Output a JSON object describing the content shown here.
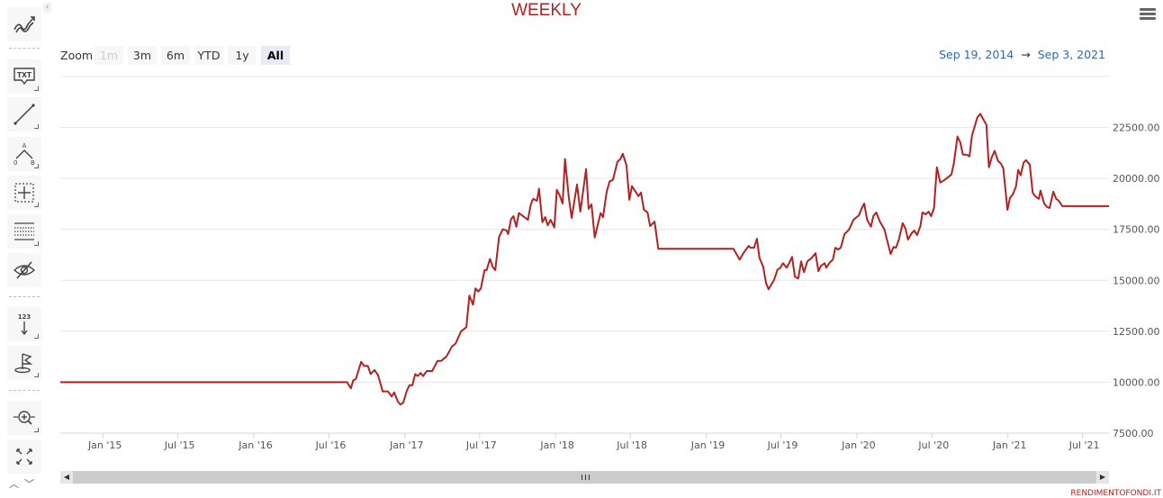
{
  "title": "WEEKLY",
  "toolbar": {
    "items": [
      {
        "name": "indicators",
        "icon": "trend-lines-icon"
      },
      {
        "name": "text-annotation",
        "icon": "txt-callout-icon",
        "label": "TXT"
      },
      {
        "name": "line",
        "icon": "line-segment-icon"
      },
      {
        "name": "measure-angle",
        "icon": "angle-ab-icon",
        "labels": [
          "A",
          "0",
          "B"
        ]
      },
      {
        "name": "crosshair",
        "icon": "crosshair-grid-icon"
      },
      {
        "name": "fibonacci",
        "icon": "horizontal-lines-icon"
      },
      {
        "name": "toggle-annotations",
        "icon": "eye-off-icon"
      },
      {
        "name": "vertical-counter",
        "icon": "counter-arrow-icon",
        "label": "123"
      },
      {
        "name": "flag",
        "icon": "flag-icon"
      },
      {
        "name": "zoom-change",
        "icon": "zoom-pan-icon"
      },
      {
        "name": "fullscreen",
        "icon": "fullscreen-icon"
      }
    ],
    "collapse_glyph": "‹",
    "scroll_glyphs": "︿﹀"
  },
  "range_selector": {
    "label": "Zoom",
    "buttons": [
      {
        "label": "1m",
        "state": "disabled"
      },
      {
        "label": "3m",
        "state": "normal"
      },
      {
        "label": "6m",
        "state": "normal"
      },
      {
        "label": "YTD",
        "state": "normal"
      },
      {
        "label": "1y",
        "state": "normal"
      },
      {
        "label": "All",
        "state": "active"
      }
    ],
    "from": "Sep 19, 2014",
    "arrow": "→",
    "to": "Sep 3, 2021"
  },
  "credits": "RENDIMENTOFONDI.IT",
  "colors": {
    "line": "#b22222",
    "title": "#b22222",
    "range_text": "#3366aa"
  },
  "chart_data": {
    "type": "line",
    "title": "WEEKLY",
    "xlim": [
      "2014-09-19",
      "2021-09-03"
    ],
    "ylim": [
      7500,
      25000
    ],
    "grid": true,
    "legend": "none",
    "x_ticks": [
      "Jan '15",
      "Jul '15",
      "Jan '16",
      "Jul '16",
      "Jan '17",
      "Jul '17",
      "Jan '18",
      "Jul '18",
      "Jan '19",
      "Jul '19",
      "Jan '20",
      "Jul '20",
      "Jan '21",
      "Jul '21"
    ],
    "x_tick_dates": [
      "2015-01-01",
      "2015-07-01",
      "2016-01-01",
      "2016-07-01",
      "2017-01-01",
      "2017-07-01",
      "2018-01-01",
      "2018-07-01",
      "2019-01-01",
      "2019-07-01",
      "2020-01-01",
      "2020-07-01",
      "2021-01-01",
      "2021-07-01"
    ],
    "y_ticks": [
      7500,
      10000,
      12500,
      15000,
      17500,
      20000,
      22500
    ],
    "y_tick_labels": [
      "7500.00",
      "10000.00",
      "12500.00",
      "15000.00",
      "17500.00",
      "20000.00",
      "22500.00"
    ],
    "series": [
      {
        "points": [
          [
            "2014-09-19",
            10000
          ],
          [
            "2016-08-14",
            10000
          ],
          [
            "2016-08-23",
            9700
          ],
          [
            "2016-08-29",
            10100
          ],
          [
            "2016-09-04",
            10150
          ],
          [
            "2016-09-17",
            11000
          ],
          [
            "2016-09-24",
            10800
          ],
          [
            "2016-10-03",
            10800
          ],
          [
            "2016-10-10",
            10400
          ],
          [
            "2016-10-19",
            10600
          ],
          [
            "2016-10-28",
            10350
          ],
          [
            "2016-11-08",
            9550
          ],
          [
            "2016-11-21",
            9550
          ],
          [
            "2016-11-30",
            9300
          ],
          [
            "2016-12-06",
            9500
          ],
          [
            "2016-12-15",
            9050
          ],
          [
            "2016-12-21",
            8900
          ],
          [
            "2016-12-28",
            9000
          ],
          [
            "2017-01-06",
            9600
          ],
          [
            "2017-01-12",
            9850
          ],
          [
            "2017-01-19",
            9850
          ],
          [
            "2017-01-26",
            10400
          ],
          [
            "2017-02-01",
            10300
          ],
          [
            "2017-02-08",
            10450
          ],
          [
            "2017-02-14",
            10300
          ],
          [
            "2017-02-23",
            10550
          ],
          [
            "2017-03-08",
            10550
          ],
          [
            "2017-03-21",
            11050
          ],
          [
            "2017-03-30",
            11050
          ],
          [
            "2017-04-12",
            11270
          ],
          [
            "2017-04-25",
            11750
          ],
          [
            "2017-05-04",
            11900
          ],
          [
            "2017-05-17",
            12500
          ],
          [
            "2017-05-30",
            12700
          ],
          [
            "2017-06-06",
            14250
          ],
          [
            "2017-06-15",
            13800
          ],
          [
            "2017-06-21",
            14600
          ],
          [
            "2017-06-28",
            14450
          ],
          [
            "2017-07-04",
            14600
          ],
          [
            "2017-07-13",
            15500
          ],
          [
            "2017-07-18",
            15500
          ],
          [
            "2017-07-26",
            16050
          ],
          [
            "2017-08-02",
            15650
          ],
          [
            "2017-08-08",
            15500
          ],
          [
            "2017-08-17",
            17130
          ],
          [
            "2017-08-26",
            17500
          ],
          [
            "2017-09-04",
            17450
          ],
          [
            "2017-09-08",
            17270
          ],
          [
            "2017-09-15",
            18000
          ],
          [
            "2017-09-21",
            18150
          ],
          [
            "2017-09-28",
            17630
          ],
          [
            "2017-10-04",
            18300
          ],
          [
            "2017-10-26",
            17970
          ],
          [
            "2017-11-02",
            18730
          ],
          [
            "2017-11-08",
            19000
          ],
          [
            "2017-11-17",
            18900
          ],
          [
            "2017-11-22",
            19500
          ],
          [
            "2017-11-30",
            17850
          ],
          [
            "2017-12-07",
            18100
          ],
          [
            "2017-12-13",
            17700
          ],
          [
            "2017-12-20",
            17970
          ],
          [
            "2017-12-29",
            17600
          ],
          [
            "2018-01-04",
            19440
          ],
          [
            "2018-01-11",
            19170
          ],
          [
            "2018-01-18",
            18770
          ],
          [
            "2018-01-24",
            20950
          ],
          [
            "2018-02-02",
            19100
          ],
          [
            "2018-02-09",
            18060
          ],
          [
            "2018-02-22",
            19700
          ],
          [
            "2018-03-02",
            18370
          ],
          [
            "2018-03-16",
            20460
          ],
          [
            "2018-03-22",
            18510
          ],
          [
            "2018-03-29",
            18730
          ],
          [
            "2018-04-06",
            17100
          ],
          [
            "2018-04-20",
            18300
          ],
          [
            "2018-04-26",
            18100
          ],
          [
            "2018-05-05",
            19350
          ],
          [
            "2018-05-12",
            19850
          ],
          [
            "2018-05-20",
            19930
          ],
          [
            "2018-05-31",
            20820
          ],
          [
            "2018-06-07",
            20950
          ],
          [
            "2018-06-13",
            21210
          ],
          [
            "2018-06-22",
            20640
          ],
          [
            "2018-06-29",
            18950
          ],
          [
            "2018-07-05",
            19620
          ],
          [
            "2018-07-21",
            19130
          ],
          [
            "2018-07-27",
            19310
          ],
          [
            "2018-08-03",
            18470
          ],
          [
            "2018-08-12",
            18330
          ],
          [
            "2018-08-18",
            17660
          ],
          [
            "2018-08-29",
            17880
          ],
          [
            "2018-09-07",
            16550
          ],
          [
            "2019-03-08",
            16550
          ],
          [
            "2019-03-23",
            16020
          ],
          [
            "2019-04-01",
            16330
          ],
          [
            "2019-04-14",
            16690
          ],
          [
            "2019-04-18",
            16600
          ],
          [
            "2019-04-27",
            16600
          ],
          [
            "2019-05-04",
            17040
          ],
          [
            "2019-05-10",
            16100
          ],
          [
            "2019-05-19",
            15670
          ],
          [
            "2019-05-26",
            14870
          ],
          [
            "2019-06-01",
            14560
          ],
          [
            "2019-06-14",
            15000
          ],
          [
            "2019-06-23",
            15530
          ],
          [
            "2019-06-30",
            15620
          ],
          [
            "2019-07-06",
            15840
          ],
          [
            "2019-07-15",
            15620
          ],
          [
            "2019-07-21",
            15840
          ],
          [
            "2019-07-28",
            16150
          ],
          [
            "2019-08-04",
            15180
          ],
          [
            "2019-08-12",
            15090
          ],
          [
            "2019-08-19",
            15930
          ],
          [
            "2019-08-26",
            15400
          ],
          [
            "2019-09-03",
            15930
          ],
          [
            "2019-09-12",
            16070
          ],
          [
            "2019-09-23",
            16330
          ],
          [
            "2019-09-30",
            15450
          ],
          [
            "2019-10-06",
            15710
          ],
          [
            "2019-10-15",
            15840
          ],
          [
            "2019-10-19",
            15620
          ],
          [
            "2019-10-28",
            15890
          ],
          [
            "2019-11-04",
            16020
          ],
          [
            "2019-11-10",
            16600
          ],
          [
            "2019-11-17",
            16510
          ],
          [
            "2019-11-23",
            16600
          ],
          [
            "2019-12-02",
            17260
          ],
          [
            "2019-12-13",
            17490
          ],
          [
            "2019-12-24",
            17980
          ],
          [
            "2020-01-06",
            18190
          ],
          [
            "2020-01-13",
            18550
          ],
          [
            "2020-01-19",
            18770
          ],
          [
            "2020-01-26",
            17980
          ],
          [
            "2020-02-04",
            17630
          ],
          [
            "2020-02-10",
            18150
          ],
          [
            "2020-02-17",
            18330
          ],
          [
            "2020-02-26",
            17880
          ],
          [
            "2020-03-08",
            17490
          ],
          [
            "2020-03-14",
            17000
          ],
          [
            "2020-03-23",
            16290
          ],
          [
            "2020-03-30",
            16640
          ],
          [
            "2020-04-05",
            16600
          ],
          [
            "2020-04-12",
            17000
          ],
          [
            "2020-04-21",
            17800
          ],
          [
            "2020-04-28",
            17530
          ],
          [
            "2020-05-04",
            17000
          ],
          [
            "2020-05-13",
            17310
          ],
          [
            "2020-05-19",
            17440
          ],
          [
            "2020-05-26",
            17220
          ],
          [
            "2020-06-03",
            17660
          ],
          [
            "2020-06-08",
            18330
          ],
          [
            "2020-06-16",
            18240
          ],
          [
            "2020-06-23",
            18370
          ],
          [
            "2020-06-29",
            18150
          ],
          [
            "2020-07-06",
            18550
          ],
          [
            "2020-07-13",
            20550
          ],
          [
            "2020-07-21",
            19800
          ],
          [
            "2020-08-01",
            19930
          ],
          [
            "2020-08-17",
            20190
          ],
          [
            "2020-08-23",
            20730
          ],
          [
            "2020-09-01",
            22060
          ],
          [
            "2020-09-08",
            21750
          ],
          [
            "2020-09-14",
            21170
          ],
          [
            "2020-09-23",
            21170
          ],
          [
            "2020-09-30",
            21080
          ],
          [
            "2020-10-06",
            22100
          ],
          [
            "2020-10-15",
            22720
          ],
          [
            "2020-10-19",
            22990
          ],
          [
            "2020-10-26",
            23170
          ],
          [
            "2020-11-10",
            22630
          ],
          [
            "2020-11-16",
            20550
          ],
          [
            "2020-11-23",
            21040
          ],
          [
            "2020-11-30",
            21350
          ],
          [
            "2020-12-08",
            20860
          ],
          [
            "2020-12-15",
            20730
          ],
          [
            "2020-12-21",
            20500
          ],
          [
            "2020-12-31",
            18460
          ],
          [
            "2021-01-06",
            19040
          ],
          [
            "2021-01-13",
            19220
          ],
          [
            "2021-01-21",
            19620
          ],
          [
            "2021-01-26",
            20420
          ],
          [
            "2021-02-01",
            20150
          ],
          [
            "2021-02-08",
            20770
          ],
          [
            "2021-02-14",
            20900
          ],
          [
            "2021-02-23",
            20680
          ],
          [
            "2021-03-02",
            19310
          ],
          [
            "2021-03-08",
            19130
          ],
          [
            "2021-03-17",
            19000
          ],
          [
            "2021-03-21",
            19400
          ],
          [
            "2021-03-30",
            18770
          ],
          [
            "2021-04-06",
            18600
          ],
          [
            "2021-04-12",
            18550
          ],
          [
            "2021-04-21",
            19350
          ],
          [
            "2021-04-28",
            19000
          ],
          [
            "2021-05-04",
            18910
          ],
          [
            "2021-05-13",
            18640
          ],
          [
            "2021-09-03",
            18640
          ]
        ]
      }
    ]
  }
}
